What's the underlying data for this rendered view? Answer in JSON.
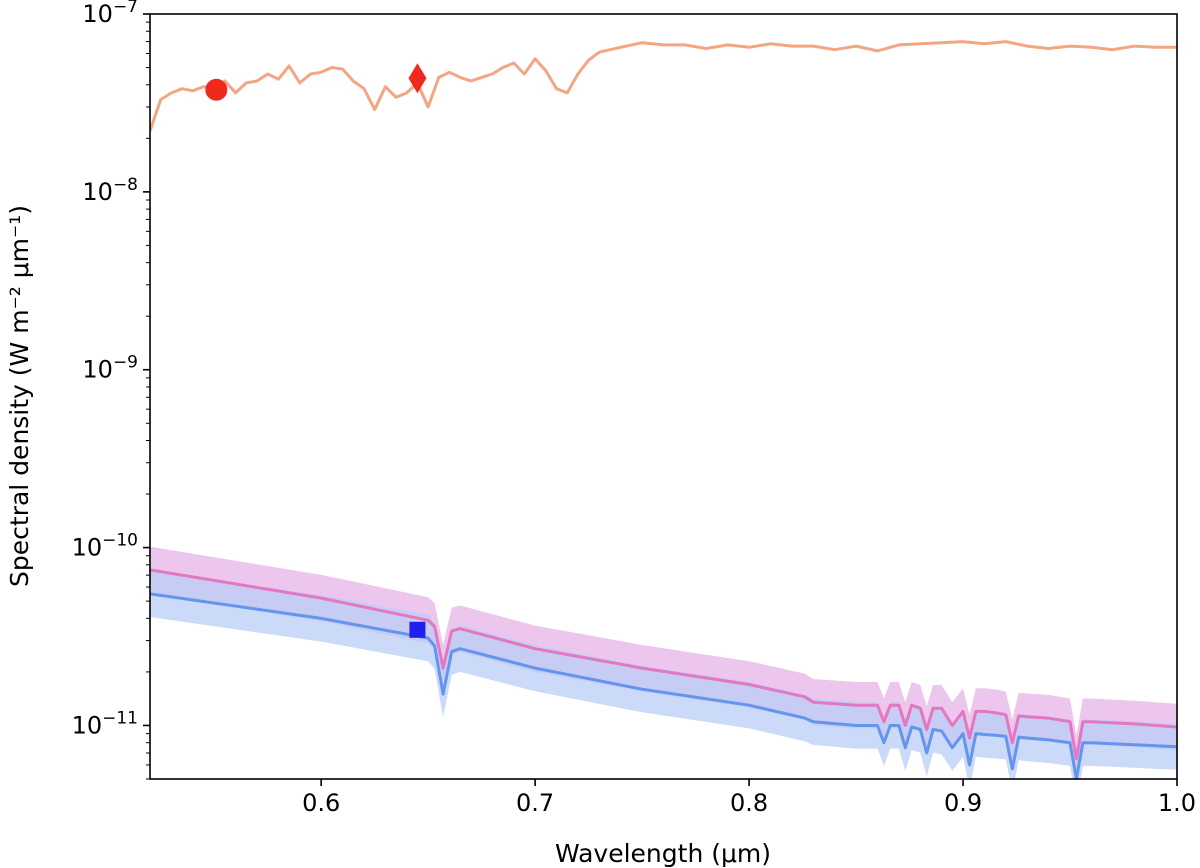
{
  "chart_data": {
    "type": "line",
    "xlabel": "Wavelength (μm)",
    "ylabel": "Spectral density (W m⁻² μm⁻¹)",
    "xlim": [
      0.52,
      1.0
    ],
    "ylim": [
      5e-12,
      1e-07
    ],
    "yscale": "log",
    "grid": false,
    "x_ticks": [
      {
        "value": 0.6,
        "label": "0.6"
      },
      {
        "value": 0.7,
        "label": "0.7"
      },
      {
        "value": 0.8,
        "label": "0.8"
      },
      {
        "value": 0.9,
        "label": "0.9"
      },
      {
        "value": 1.0,
        "label": "1.0"
      }
    ],
    "y_ticks": [
      {
        "value": 1e-11,
        "mant": "10",
        "exp": "−11"
      },
      {
        "value": 1e-10,
        "mant": "10",
        "exp": "−10"
      },
      {
        "value": 1e-09,
        "mant": "10",
        "exp": "−9"
      },
      {
        "value": 1e-08,
        "mant": "10",
        "exp": "−8"
      },
      {
        "value": 1e-07,
        "mant": "10",
        "exp": "−7"
      }
    ],
    "series": [
      {
        "color": "#f4a582",
        "x": [
          0.52,
          0.525,
          0.53,
          0.535,
          0.54,
          0.545,
          0.55,
          0.555,
          0.56,
          0.565,
          0.57,
          0.575,
          0.58,
          0.585,
          0.59,
          0.595,
          0.6,
          0.605,
          0.61,
          0.615,
          0.62,
          0.625,
          0.63,
          0.635,
          0.64,
          0.645,
          0.65,
          0.655,
          0.66,
          0.665,
          0.67,
          0.675,
          0.68,
          0.685,
          0.69,
          0.695,
          0.7,
          0.705,
          0.71,
          0.715,
          0.72,
          0.725,
          0.73,
          0.735,
          0.74,
          0.75,
          0.76,
          0.77,
          0.78,
          0.79,
          0.8,
          0.81,
          0.82,
          0.83,
          0.84,
          0.85,
          0.86,
          0.87,
          0.88,
          0.89,
          0.9,
          0.91,
          0.92,
          0.93,
          0.94,
          0.95,
          0.96,
          0.97,
          0.98,
          0.99,
          1.0
        ],
        "y": [
          2.2e-08,
          3.3e-08,
          3.6e-08,
          3.8e-08,
          3.7e-08,
          3.9e-08,
          3.8e-08,
          4.2e-08,
          3.6e-08,
          4.1e-08,
          4.2e-08,
          4.6e-08,
          4.3e-08,
          5.1e-08,
          4.1e-08,
          4.6e-08,
          4.7e-08,
          5e-08,
          4.9e-08,
          4.2e-08,
          3.8e-08,
          2.9e-08,
          3.9e-08,
          3.4e-08,
          3.6e-08,
          4.1e-08,
          3e-08,
          4.4e-08,
          4.7e-08,
          4.4e-08,
          4.2e-08,
          4.4e-08,
          4.6e-08,
          5e-08,
          5.3e-08,
          4.6e-08,
          5.6e-08,
          4.8e-08,
          3.8e-08,
          3.6e-08,
          4.6e-08,
          5.5e-08,
          6.1e-08,
          6.3e-08,
          6.5e-08,
          6.9e-08,
          6.7e-08,
          6.7e-08,
          6.4e-08,
          6.7e-08,
          6.5e-08,
          6.8e-08,
          6.6e-08,
          6.6e-08,
          6.3e-08,
          6.6e-08,
          6.2e-08,
          6.7e-08,
          6.8e-08,
          6.9e-08,
          7e-08,
          6.8e-08,
          7e-08,
          6.6e-08,
          6.4e-08,
          6.6e-08,
          6.5e-08,
          6.3e-08,
          6.6e-08,
          6.5e-08,
          6.5e-08
        ]
      },
      {
        "color": "#e377c2",
        "band_color": "#e5b3e5",
        "x": [
          0.52,
          0.6,
          0.65,
          0.653,
          0.657,
          0.661,
          0.665,
          0.7,
          0.75,
          0.8,
          0.826,
          0.83,
          0.85,
          0.86,
          0.863,
          0.866,
          0.87,
          0.873,
          0.876,
          0.88,
          0.883,
          0.886,
          0.89,
          0.895,
          0.9,
          0.903,
          0.906,
          0.91,
          0.915,
          0.92,
          0.923,
          0.926,
          0.93,
          0.94,
          0.95,
          0.953,
          0.956,
          0.96,
          0.98,
          1.0
        ],
        "y": [
          7.5e-11,
          5.2e-11,
          3.9e-11,
          3.6e-11,
          2.1e-11,
          3.4e-11,
          3.5e-11,
          2.7e-11,
          2.1e-11,
          1.7e-11,
          1.45e-11,
          1.35e-11,
          1.3e-11,
          1.3e-11,
          1.05e-11,
          1.3e-11,
          1.3e-11,
          1e-11,
          1.3e-11,
          1.25e-11,
          9.5e-12,
          1.25e-11,
          1.25e-11,
          1e-11,
          1.2e-11,
          8.5e-12,
          1.2e-11,
          1.2e-11,
          1.18e-11,
          1.15e-11,
          8e-12,
          1.13e-11,
          1.12e-11,
          1.1e-11,
          1.05e-11,
          6.5e-12,
          1.05e-11,
          1.05e-11,
          1.02e-11,
          9.8e-12
        ]
      },
      {
        "color": "#6495ed",
        "band_color": "#b9cdf5",
        "x": [
          0.52,
          0.6,
          0.65,
          0.653,
          0.657,
          0.661,
          0.665,
          0.7,
          0.75,
          0.8,
          0.826,
          0.83,
          0.85,
          0.86,
          0.863,
          0.866,
          0.87,
          0.873,
          0.876,
          0.88,
          0.883,
          0.886,
          0.89,
          0.895,
          0.9,
          0.903,
          0.906,
          0.91,
          0.915,
          0.92,
          0.923,
          0.926,
          0.93,
          0.94,
          0.95,
          0.953,
          0.956,
          0.96,
          0.98,
          1.0
        ],
        "y": [
          5.5e-11,
          4e-11,
          3.1e-11,
          2.8e-11,
          1.5e-11,
          2.6e-11,
          2.7e-11,
          2.1e-11,
          1.6e-11,
          1.3e-11,
          1.1e-11,
          1.05e-11,
          1e-11,
          1e-11,
          8e-12,
          1e-11,
          1e-11,
          7.5e-12,
          9.8e-12,
          9.5e-12,
          7e-12,
          9.5e-12,
          9.3e-12,
          7.5e-12,
          9e-12,
          6e-12,
          9e-12,
          8.9e-12,
          8.8e-12,
          8.7e-12,
          5.7e-12,
          8.6e-12,
          8.5e-12,
          8.3e-12,
          8e-12,
          5e-12,
          8e-12,
          8e-12,
          7.8e-12,
          7.6e-12
        ]
      }
    ],
    "markers": [
      {
        "shape": "circle",
        "x": 0.551,
        "y": 3.75e-08,
        "color": "#ee2a1e"
      },
      {
        "shape": "diamond",
        "x": 0.645,
        "y": 4.35e-08,
        "color": "#ee2a1e"
      },
      {
        "shape": "square",
        "x": 0.645,
        "y": 3.45e-11,
        "color": "#1f1fee"
      }
    ]
  }
}
